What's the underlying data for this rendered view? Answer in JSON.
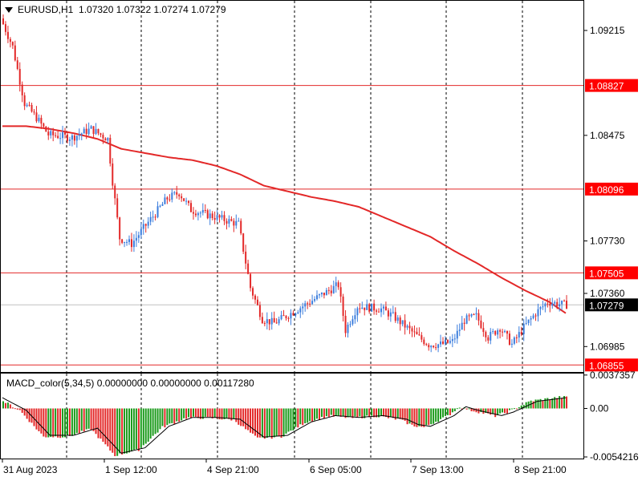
{
  "header": {
    "symbol": "EURUSD,H1",
    "ohlc": "1.07320 1.07322 1.07274 1.07279"
  },
  "colors": {
    "bull": "#3b7ddd",
    "bear": "#e32828",
    "ma": "#e32828",
    "hline": "#e32828",
    "macd_up": "#1a9a1a",
    "macd_down": "#e32828",
    "signal": "#000000",
    "grid": "#000000",
    "price_tag_bg": "#ff0000",
    "price_tag_current_bg": "#000000"
  },
  "chart_data": [
    {
      "type": "candlestick",
      "title": "EURUSD,H1",
      "ylim": [
        1.068,
        1.0943
      ],
      "yticks": [
        "1.09215",
        "1.08475",
        "1.07730",
        "1.07360",
        "1.06985"
      ],
      "xticks": [
        "31 Aug 2023",
        "1 Sep 12:00",
        "4 Sep 21:00",
        "6 Sep 05:00",
        "7 Sep 13:00",
        "8 Sep 21:00"
      ],
      "price_levels": [
        "1.08827",
        "1.08096",
        "1.07505",
        "1.06855"
      ],
      "current_price": "1.07279",
      "moving_average": [
        [
          0,
          1.0854
        ],
        [
          10,
          1.0854
        ],
        [
          20,
          1.0852
        ],
        [
          30,
          1.0849
        ],
        [
          40,
          1.0845
        ],
        [
          50,
          1.0838
        ],
        [
          60,
          1.0835
        ],
        [
          70,
          1.0832
        ],
        [
          80,
          1.083
        ],
        [
          90,
          1.0826
        ],
        [
          100,
          1.082
        ],
        [
          110,
          1.0812
        ],
        [
          120,
          1.0808
        ],
        [
          130,
          1.0804
        ],
        [
          140,
          1.0801
        ],
        [
          150,
          1.0797
        ],
        [
          160,
          1.079
        ],
        [
          170,
          1.0783
        ],
        [
          180,
          1.0776
        ],
        [
          190,
          1.0766
        ],
        [
          200,
          1.0757
        ],
        [
          210,
          1.0747
        ],
        [
          220,
          1.0738
        ],
        [
          230,
          1.073
        ],
        [
          237,
          1.0722
        ]
      ],
      "ohlc_anchors": [
        [
          0,
          1.093
        ],
        [
          5,
          1.091
        ],
        [
          10,
          1.087
        ],
        [
          15,
          1.086
        ],
        [
          20,
          1.0848
        ],
        [
          30,
          1.0846
        ],
        [
          38,
          1.0852
        ],
        [
          45,
          1.0845
        ],
        [
          47,
          1.0815
        ],
        [
          50,
          1.0775
        ],
        [
          55,
          1.0771
        ],
        [
          60,
          1.0782
        ],
        [
          70,
          1.0803
        ],
        [
          75,
          1.0807
        ],
        [
          80,
          1.0795
        ],
        [
          90,
          1.079
        ],
        [
          100,
          1.0785
        ],
        [
          105,
          1.074
        ],
        [
          110,
          1.0718
        ],
        [
          115,
          1.0715
        ],
        [
          125,
          1.0725
        ],
        [
          135,
          1.0735
        ],
        [
          142,
          1.0742
        ],
        [
          145,
          1.071
        ],
        [
          150,
          1.0727
        ],
        [
          160,
          1.0725
        ],
        [
          165,
          1.072
        ],
        [
          175,
          1.0706
        ],
        [
          180,
          1.07
        ],
        [
          185,
          1.07
        ],
        [
          190,
          1.0702
        ],
        [
          195,
          1.0717
        ],
        [
          200,
          1.072
        ],
        [
          205,
          1.0705
        ],
        [
          210,
          1.0712
        ],
        [
          215,
          1.07
        ],
        [
          220,
          1.0712
        ],
        [
          225,
          1.0722
        ],
        [
          230,
          1.073
        ],
        [
          237,
          1.0728
        ]
      ],
      "n_candles": 238
    },
    {
      "type": "bar",
      "title": "MACD_color(5,34,5) 0.00000000 0.00000000 0.00117280",
      "ylim": [
        -0.0056,
        0.0039
      ],
      "yticks": [
        "0.0037357",
        "0.00",
        "-0.0054216"
      ],
      "signal_anchors": [
        [
          0,
          0.0012
        ],
        [
          10,
          -0.0002
        ],
        [
          20,
          -0.003
        ],
        [
          30,
          -0.003
        ],
        [
          40,
          -0.0022
        ],
        [
          50,
          -0.005
        ],
        [
          60,
          -0.0044
        ],
        [
          70,
          -0.002
        ],
        [
          80,
          -0.001
        ],
        [
          90,
          -0.001
        ],
        [
          100,
          -0.0012
        ],
        [
          110,
          -0.0032
        ],
        [
          120,
          -0.003
        ],
        [
          130,
          -0.0015
        ],
        [
          140,
          -0.0008
        ],
        [
          150,
          -0.001
        ],
        [
          160,
          -0.0008
        ],
        [
          170,
          -0.0012
        ],
        [
          175,
          -0.0018
        ],
        [
          180,
          -0.002
        ],
        [
          190,
          -0.0008
        ],
        [
          195,
          0.0002
        ],
        [
          200,
          -0.0002
        ],
        [
          210,
          -0.0008
        ],
        [
          215,
          -0.0004
        ],
        [
          225,
          0.0008
        ],
        [
          237,
          0.0012
        ]
      ]
    }
  ]
}
